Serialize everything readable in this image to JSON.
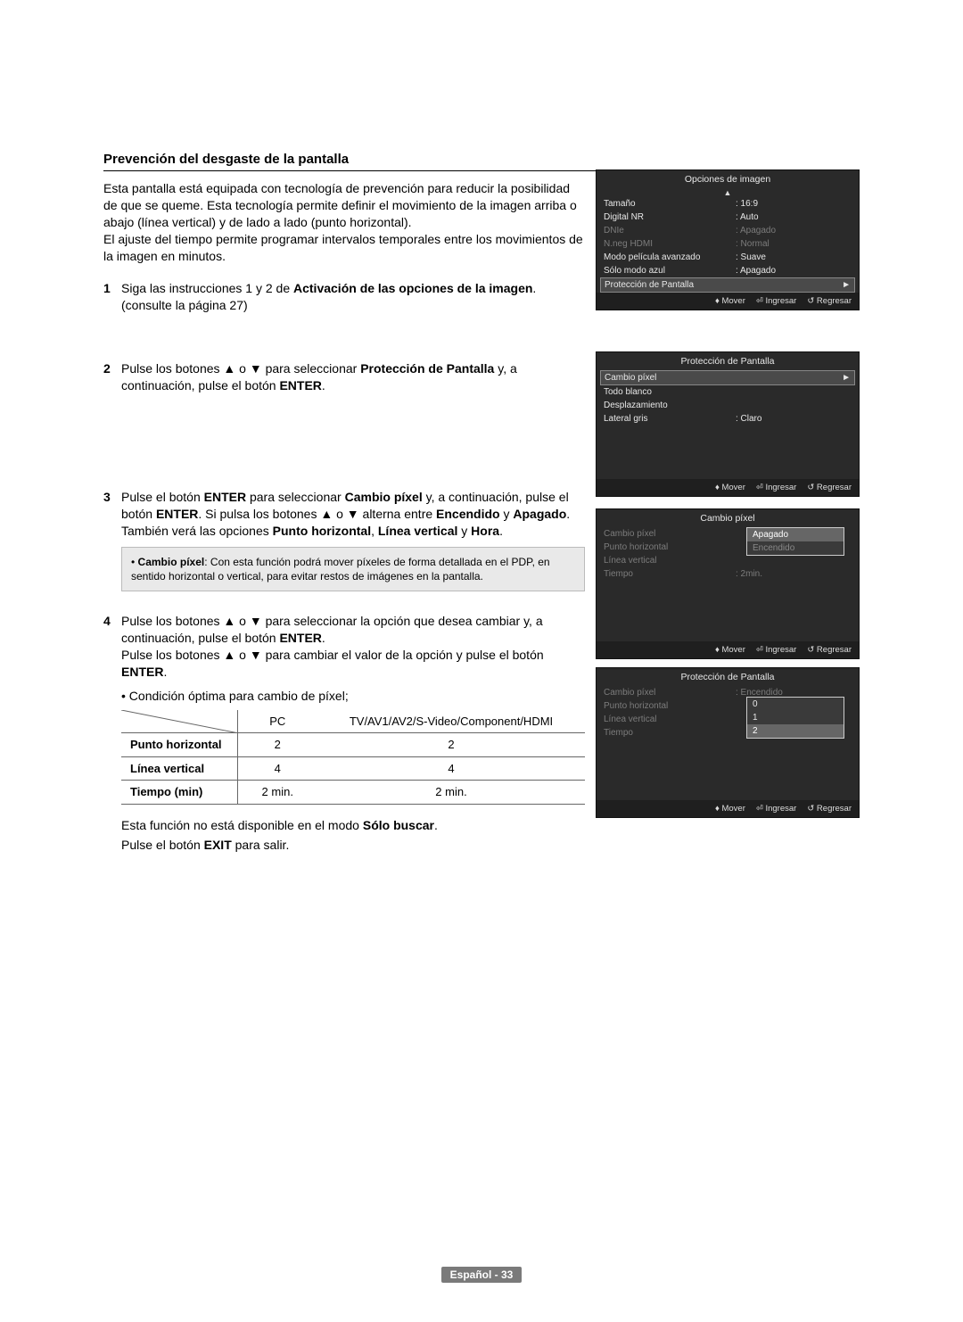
{
  "title": "Prevención del desgaste de la pantalla",
  "intro": "Esta pantalla está equipada con tecnología de prevención para reducir la posibilidad de que se queme. Esta tecnología permite definir el movimiento de la imagen arriba o abajo (línea vertical) y de lado a lado (punto horizontal).\nEl ajuste del tiempo permite programar intervalos temporales entre los movimientos de la imagen en minutos.",
  "step1": {
    "num": "1",
    "a": "Siga las instrucciones 1 y 2 de ",
    "b": "Activación de las opciones de la imagen",
    "c": ". (consulte la página 27)"
  },
  "step2": {
    "num": "2",
    "a": "Pulse los botones ▲ o ▼ para seleccionar ",
    "b": "Protección de Pantalla",
    "c": " y, a continuación, pulse el botón ",
    "d": "ENTER",
    "e": "."
  },
  "step3": {
    "num": "3",
    "a": "Pulse el botón ",
    "b": "ENTER",
    "c": " para seleccionar ",
    "d": "Cambio píxel",
    "e": " y, a continuación, pulse el botón ",
    "f": "ENTER",
    "g": ". Si pulsa los botones ▲ o ▼ alterna entre ",
    "h": "Encendido",
    "i": " y ",
    "j": "Apagado",
    "k": ". También verá las opciones ",
    "l": "Punto horizontal",
    "m": ", ",
    "n": "Línea vertical",
    "o": " y ",
    "p": "Hora",
    "q": "."
  },
  "note": {
    "a": "• ",
    "b": "Cambio píxel",
    "c": ": Con esta función podrá mover píxeles de forma detallada en el PDP, en sentido horizontal o vertical, para evitar restos de imágenes en la pantalla."
  },
  "step4": {
    "num": "4",
    "a": "Pulse los botones ▲ o ▼  para seleccionar la opción que desea cambiar y, a continuación, pulse el botón ",
    "b": "ENTER",
    "c": ".\nPulse los botones ▲ o ▼  para cambiar el valor de la opción y pulse el botón ",
    "d": "ENTER",
    "e": "."
  },
  "cond_label": "• Condición óptima para cambio de píxel;",
  "table": {
    "headers": [
      "PC",
      "TV/AV1/AV2/S-Video/Component/HDMI"
    ],
    "rows": [
      {
        "label": "Punto horizontal",
        "v1": "2",
        "v2": "2"
      },
      {
        "label": "Línea vertical",
        "v1": "4",
        "v2": "4"
      },
      {
        "label": "Tiempo (min)",
        "v1": "2 min.",
        "v2": "2 min."
      }
    ]
  },
  "footnote1a": "Esta función no está disponible en el modo ",
  "footnote1b": "Sólo buscar",
  "footnote1c": ".",
  "footnote2a": "Pulse el botón ",
  "footnote2b": "EXIT",
  "footnote2c": " para salir.",
  "page_lang": "Español - ",
  "page_num": "33",
  "menu1": {
    "title": "Opciones de imagen",
    "rows": [
      {
        "lbl": "Tamaño",
        "val": ": 16:9",
        "dim": false
      },
      {
        "lbl": "Digital NR",
        "val": ": Auto",
        "dim": false
      },
      {
        "lbl": "DNIe",
        "val": ": Apagado",
        "dim": true
      },
      {
        "lbl": "N.neg HDMI",
        "val": ": Normal",
        "dim": true
      },
      {
        "lbl": "Modo película avanzado",
        "val": ": Suave",
        "dim": false
      },
      {
        "lbl": "Sólo modo azul",
        "val": ": Apagado",
        "dim": false
      },
      {
        "lbl": "Protección de Pantalla",
        "val": "",
        "sel": true,
        "arrow": "►"
      }
    ],
    "foot": [
      "♦ Mover",
      "⏎ Ingresar",
      "↺ Regresar"
    ]
  },
  "menu2": {
    "title": "Protección de Pantalla",
    "rows": [
      {
        "lbl": "Cambio píxel",
        "val": "",
        "sel": true,
        "arrow": "►"
      },
      {
        "lbl": "Todo blanco",
        "val": ""
      },
      {
        "lbl": "Desplazamiento",
        "val": ""
      },
      {
        "lbl": "Lateral gris",
        "val": ": Claro"
      }
    ],
    "foot": [
      "♦ Mover",
      "⏎ Ingresar",
      "↺ Regresar"
    ]
  },
  "menu3": {
    "title": "Cambio píxel",
    "rows": [
      {
        "lbl": "Cambio píxel",
        "val": "",
        "dim": true
      },
      {
        "lbl": "Punto horizontal",
        "val": "",
        "dim": true
      },
      {
        "lbl": "Línea vertical",
        "val": "",
        "dim": true
      },
      {
        "lbl": "Tiempo",
        "val": ": 2min.",
        "dim": true
      }
    ],
    "popup": [
      {
        "t": "Apagado",
        "on": true
      },
      {
        "t": "Encendido",
        "dim": true
      }
    ],
    "foot": [
      "♦ Mover",
      "⏎ Ingresar",
      "↺ Regresar"
    ]
  },
  "menu4": {
    "title": "Protección de Pantalla",
    "rows": [
      {
        "lbl": "Cambio píxel",
        "val": ": Encendido",
        "dim": true
      },
      {
        "lbl": "Punto horizontal",
        "val": "",
        "dim": true
      },
      {
        "lbl": "Línea vertical",
        "val": "",
        "dim": true
      },
      {
        "lbl": "Tiempo",
        "val": "",
        "dim": true
      }
    ],
    "popup": [
      {
        "t": "0"
      },
      {
        "t": "1"
      },
      {
        "t": "2",
        "on": true
      }
    ],
    "foot": [
      "♦ Mover",
      "⏎ Ingresar",
      "↺ Regresar"
    ]
  }
}
